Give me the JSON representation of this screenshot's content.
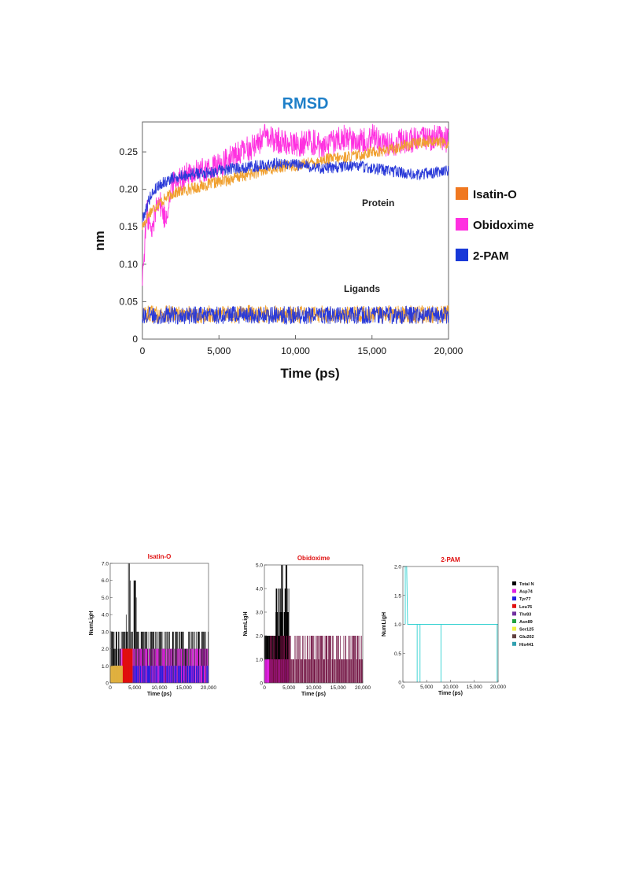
{
  "chart_data": [
    {
      "type": "line",
      "title": "RMSD",
      "xlabel": "Time (ps)",
      "ylabel": "nm",
      "xlim": [
        0,
        20000
      ],
      "ylim": [
        0,
        0.29
      ],
      "xticks": [
        0,
        5000,
        10000,
        15000,
        20000
      ],
      "xtick_labels": [
        "0",
        "5,000",
        "10,000",
        "15,000",
        "20,000"
      ],
      "yticks": [
        0,
        0.05,
        0.1,
        0.15,
        0.2,
        0.25
      ],
      "ytick_labels": [
        "0",
        "0.05",
        "0.10",
        "0.15",
        "0.20",
        "0.25"
      ],
      "grid": false,
      "legend_position": "right",
      "annotations": [
        "Protein",
        "Ligands"
      ],
      "series": [
        {
          "name": "Isatin-O",
          "color": "#f0a030",
          "legend_color": "#f07820",
          "group": "Protein",
          "x": [
            0,
            500,
            1000,
            2000,
            3000,
            4000,
            5000,
            6000,
            7000,
            8000,
            9000,
            10000,
            11000,
            12000,
            13000,
            14000,
            15000,
            16000,
            17000,
            18000,
            19000,
            20000
          ],
          "y": [
            0.15,
            0.17,
            0.18,
            0.195,
            0.2,
            0.205,
            0.21,
            0.215,
            0.22,
            0.225,
            0.23,
            0.232,
            0.235,
            0.24,
            0.242,
            0.245,
            0.25,
            0.252,
            0.258,
            0.262,
            0.265,
            0.26
          ]
        },
        {
          "name": "Obidoxime",
          "color": "#ff30e0",
          "legend_color": "#ff30e0",
          "group": "Protein",
          "x": [
            0,
            300,
            600,
            1000,
            1500,
            2000,
            3000,
            4000,
            5000,
            6000,
            7000,
            8000,
            9000,
            10000,
            11000,
            12000,
            13000,
            14000,
            15000,
            16000,
            17000,
            18000,
            19000,
            20000
          ],
          "y": [
            0.08,
            0.17,
            0.14,
            0.19,
            0.16,
            0.21,
            0.22,
            0.225,
            0.23,
            0.245,
            0.255,
            0.27,
            0.265,
            0.26,
            0.265,
            0.255,
            0.27,
            0.265,
            0.27,
            0.26,
            0.265,
            0.265,
            0.27,
            0.265
          ]
        },
        {
          "name": "2-PAM",
          "color": "#2a3ad8",
          "legend_color": "#1838d8",
          "group": "Protein",
          "x": [
            0,
            500,
            1000,
            2000,
            3000,
            4000,
            5000,
            6000,
            7000,
            8000,
            9000,
            10000,
            11000,
            12000,
            13000,
            14000,
            15000,
            16000,
            17000,
            18000,
            19000,
            20000
          ],
          "y": [
            0.16,
            0.19,
            0.205,
            0.215,
            0.22,
            0.222,
            0.225,
            0.228,
            0.23,
            0.232,
            0.235,
            0.233,
            0.23,
            0.228,
            0.23,
            0.232,
            0.228,
            0.225,
            0.222,
            0.22,
            0.222,
            0.225
          ]
        },
        {
          "name": "Isatin-O",
          "color": "#f0a030",
          "group": "Ligands",
          "x": [
            0,
            20000
          ],
          "y": [
            0.033,
            0.033
          ]
        },
        {
          "name": "2-PAM",
          "color": "#2a3ad8",
          "group": "Ligands",
          "x": [
            0,
            20000
          ],
          "y": [
            0.032,
            0.032
          ]
        }
      ]
    },
    {
      "type": "bar",
      "title": "Isatin-O",
      "xlabel": "Time (ps)",
      "ylabel": "NumLigH",
      "xlim": [
        0,
        20000
      ],
      "ylim": [
        0,
        7
      ],
      "xtick_labels": [
        "0",
        "5,000",
        "10,000",
        "15,000",
        "20,000"
      ],
      "ytick_labels": [
        "0",
        "1.0",
        "2.0",
        "3.0",
        "4.0",
        "5.0",
        "6.0",
        "7.0"
      ],
      "series": [
        {
          "name": "Total N",
          "color": "#000000",
          "x_range": [
            0,
            20000
          ],
          "typical": 3,
          "peak": 7,
          "peak_at": 4500
        },
        {
          "name": "Asp74",
          "color": "#e020e0",
          "x_range": [
            2000,
            20000
          ],
          "typical": 2
        },
        {
          "name": "Tyr77",
          "color": "#2020e0",
          "x_range": [
            3000,
            20000
          ],
          "typical": 1
        },
        {
          "name": "Leu76",
          "color": "#e01010",
          "x_range": [
            2500,
            4500
          ],
          "typical": 2
        },
        {
          "name": "Glu202",
          "color": "#e0b040",
          "x_range": [
            0,
            2500
          ],
          "typical": 1
        }
      ]
    },
    {
      "type": "bar",
      "title": "Obidoxime",
      "xlabel": "Time (ps)",
      "ylabel": "NumLigH",
      "xlim": [
        0,
        20000
      ],
      "ylim": [
        0,
        5
      ],
      "xtick_labels": [
        "0",
        "5,000",
        "10,000",
        "15,000",
        "20,000"
      ],
      "ytick_labels": [
        "0",
        "1.0",
        "2.0",
        "3.0",
        "4.0",
        "5.0"
      ],
      "series": [
        {
          "name": "Total N",
          "color": "#000000",
          "x_range": [
            0,
            5000
          ],
          "typical": 2,
          "peak": 5,
          "peak_at": 3800
        },
        {
          "name": "Asp74",
          "color": "#e020e0",
          "x_range": [
            0,
            5000
          ],
          "typical": 1
        },
        {
          "name": "Total N",
          "color": "#701040",
          "x_range": [
            1000,
            20000
          ],
          "typical": 2
        }
      ]
    },
    {
      "type": "line",
      "title": "2-PAM",
      "xlabel": "Time (ps)",
      "ylabel": "NumLigH",
      "xlim": [
        0,
        20000
      ],
      "ylim": [
        0,
        2
      ],
      "xtick_labels": [
        "0",
        "5,000",
        "10,000",
        "15,000",
        "20,000"
      ],
      "ytick_labels": [
        "0",
        "0.5",
        "1.0",
        "1.5",
        "2.0"
      ],
      "series": [
        {
          "name": "His441",
          "color": "#30d0d0",
          "x": [
            0,
            800,
            1000,
            20000
          ],
          "y": [
            2,
            2,
            1,
            1
          ],
          "drops_to_zero_at": [
            3000,
            3600,
            8000,
            19800
          ]
        }
      ]
    }
  ],
  "legend_hbond": [
    {
      "label": "Total N",
      "color": "#000000"
    },
    {
      "label": "Asp74",
      "color": "#e020e0"
    },
    {
      "label": "Tyr77",
      "color": "#2020e0"
    },
    {
      "label": "Leu76",
      "color": "#e01010"
    },
    {
      "label": "Thr83",
      "color": "#7030a0"
    },
    {
      "label": "Asn89",
      "color": "#20a040"
    },
    {
      "label": "Ser125",
      "color": "#f0f040"
    },
    {
      "label": "Glu202",
      "color": "#604040"
    },
    {
      "label": "His441",
      "color": "#30a0b0"
    }
  ]
}
